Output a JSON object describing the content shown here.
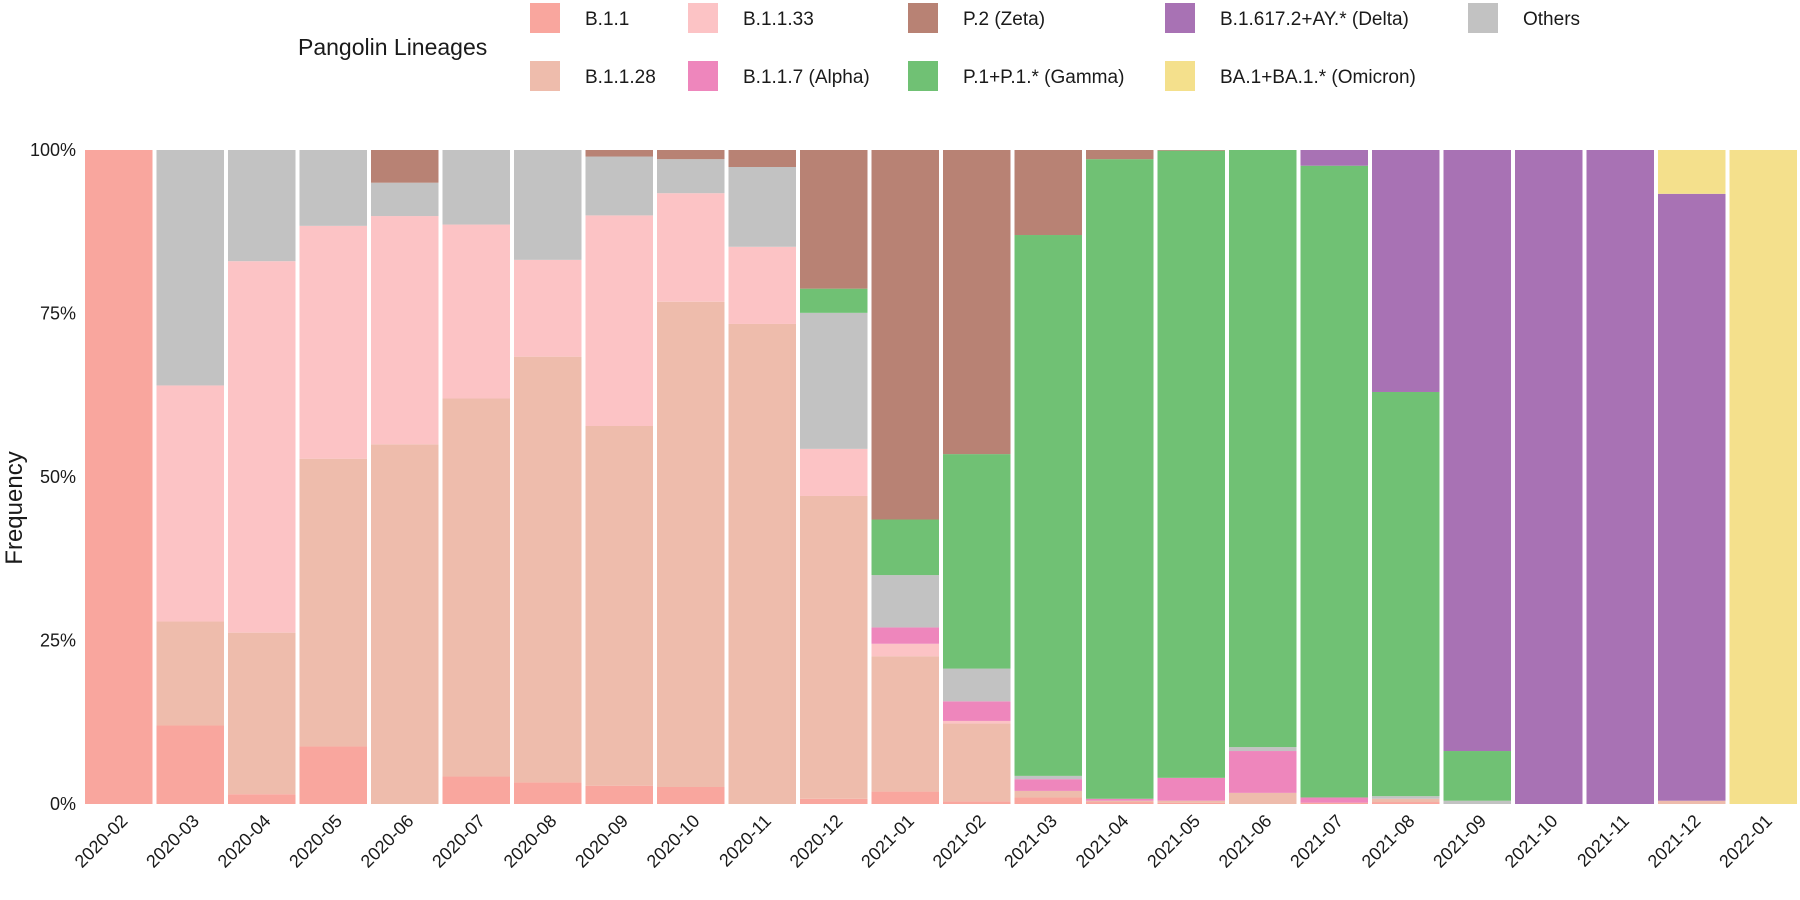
{
  "chart_data": {
    "type": "bar",
    "stacked": true,
    "normalized": true,
    "title": "",
    "xlabel": "",
    "ylabel": "Frequency",
    "ylim": [
      0,
      100
    ],
    "y_ticks": [
      "0%",
      "25%",
      "50%",
      "75%",
      "100%"
    ],
    "legend_title": "Pangolin Lineages",
    "legend_position": "top",
    "grid": false,
    "categories": [
      "2020-02",
      "2020-03",
      "2020-04",
      "2020-05",
      "2020-06",
      "2020-07",
      "2020-08",
      "2020-09",
      "2020-10",
      "2020-11",
      "2020-12",
      "2021-01",
      "2021-02",
      "2021-03",
      "2021-04",
      "2021-05",
      "2021-06",
      "2021-07",
      "2021-08",
      "2021-09",
      "2021-10",
      "2021-11",
      "2021-12",
      "2022-01"
    ],
    "legend_entries": [
      {
        "name": "B.1.1",
        "color": "#F9A69E"
      },
      {
        "name": "B.1.1.33",
        "color": "#FCC3C5"
      },
      {
        "name": "P.2 (Zeta)",
        "color": "#B88274"
      },
      {
        "name": "B.1.617.2+AY.* (Delta)",
        "color": "#A872B4"
      },
      {
        "name": "Others",
        "color": "#C2C2C2"
      },
      {
        "name": "B.1.1.28",
        "color": "#EEBCAC"
      },
      {
        "name": "B.1.1.7 (Alpha)",
        "color": "#EE86BC"
      },
      {
        "name": "P.1+P.1.* (Gamma)",
        "color": "#70C174"
      },
      {
        "name": "BA.1+BA.1.* (Omicron)",
        "color": "#F4E08C"
      }
    ],
    "series": [
      {
        "name": "B.1.1",
        "color": "#F9A69E",
        "values": [
          100,
          12,
          1.5,
          8.8,
          0,
          4.2,
          3.3,
          2.8,
          2.6,
          0,
          0.8,
          1.9,
          0.4,
          1,
          0.3,
          0.2,
          0,
          0.2,
          0.3,
          0,
          0,
          0,
          0,
          0
        ]
      },
      {
        "name": "B.1.1.28",
        "color": "#EEBCAC",
        "values": [
          0,
          15.9,
          24.7,
          44,
          55,
          57.8,
          65.1,
          55,
          74.2,
          73.4,
          46.3,
          20.7,
          11.9,
          1,
          0.2,
          0.3,
          1.7,
          0,
          0.5,
          0,
          0,
          0,
          0.5,
          0
        ]
      },
      {
        "name": "B.1.1.33",
        "color": "#FCC3C5",
        "values": [
          0,
          36.1,
          56.8,
          35.6,
          34.9,
          26.6,
          14.8,
          32.2,
          16.6,
          11.8,
          7.2,
          1.9,
          0.4,
          0,
          0,
          0,
          0,
          0,
          0,
          0,
          0,
          0,
          0,
          0
        ]
      },
      {
        "name": "B.1.1.7 (Alpha)",
        "color": "#EE86BC",
        "values": [
          0,
          0,
          0,
          0,
          0,
          0,
          0,
          0,
          0,
          0,
          0,
          2.5,
          3,
          1.8,
          0.3,
          3.5,
          6.4,
          0.8,
          0,
          0,
          0,
          0,
          0,
          0
        ]
      },
      {
        "name": "Others",
        "color": "#C2C2C2",
        "values": [
          0,
          36,
          17,
          11.6,
          5.1,
          11.4,
          16.8,
          9,
          5.2,
          12.2,
          20.8,
          8,
          5,
          0.5,
          0,
          0,
          0.6,
          0,
          0.4,
          0.5,
          0,
          0,
          0,
          0
        ]
      },
      {
        "name": "P.1+P.1.* (Gamma)",
        "color": "#70C174",
        "values": [
          0,
          0,
          0,
          0,
          0,
          0,
          0,
          0,
          0,
          0,
          3.7,
          8.5,
          32.8,
          82.7,
          97.8,
          95.9,
          91.3,
          96.6,
          61.8,
          7.6,
          0,
          0,
          0,
          0
        ]
      },
      {
        "name": "P.2 (Zeta)",
        "color": "#B88274",
        "values": [
          0,
          0,
          0,
          0,
          5,
          0,
          0,
          1,
          1.4,
          2.6,
          21.2,
          56.5,
          46.5,
          13,
          1.4,
          0.1,
          0,
          0,
          0,
          0,
          0,
          0,
          0,
          0
        ]
      },
      {
        "name": "B.1.617.2+AY.* (Delta)",
        "color": "#A872B4",
        "values": [
          0,
          0,
          0,
          0,
          0,
          0,
          0,
          0,
          0,
          0,
          0,
          0,
          0,
          0,
          0,
          0,
          0,
          2.4,
          37,
          91.9,
          100,
          100,
          92.8,
          0
        ]
      },
      {
        "name": "BA.1+BA.1.* (Omicron)",
        "color": "#F4E08C",
        "values": [
          0,
          0,
          0,
          0,
          0,
          0,
          0,
          0,
          0,
          0,
          0,
          0,
          0,
          0,
          0,
          0,
          0,
          0,
          0,
          0,
          0,
          0,
          6.7,
          100
        ]
      }
    ]
  }
}
